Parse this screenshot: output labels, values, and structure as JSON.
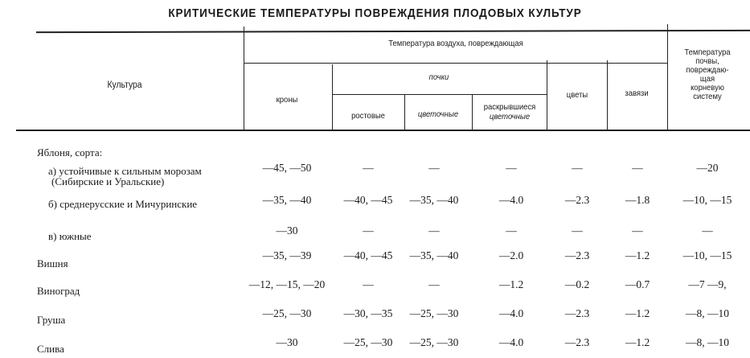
{
  "title": "КРИТИЧЕСКИЕ ТЕМПЕРАТУРЫ ПОВРЕЖДЕНИЯ ПЛОДОВЫХ КУЛЬТУР",
  "header": {
    "culture": "Культура",
    "air_group": "Температура воздуха, повреждающая",
    "crowns": "кроны",
    "buds_group": "почки",
    "growth_buds": "ростовые",
    "flower_buds": "цветочные",
    "opened_buds_1": "раскрывшиеся",
    "opened_buds_2": "цветочные",
    "flowers": "цветы",
    "ovaries": "завязи",
    "soil": [
      "Температура",
      "почвы,",
      "повреждаю-",
      "щая",
      "корневую",
      "систему"
    ]
  },
  "group_label": "Яблоня, сорта:",
  "rows": [
    {
      "label": [
        "а) устойчивые к сильным морозам",
        "(Сибирские и Уральские)"
      ],
      "values": [
        "—45, —50",
        "—",
        "—",
        "—",
        "—",
        "—",
        "—20"
      ]
    },
    {
      "label": [
        "б) среднерусские и Мичуринские"
      ],
      "values": [
        "—35, —40",
        "—40, —45",
        "—35, —40",
        "—4.0",
        "—2.3",
        "—1.8",
        "—10, —15"
      ]
    },
    {
      "label": [
        "в) южные"
      ],
      "values": [
        "—30",
        "—",
        "—",
        "—",
        "—",
        "—",
        "—"
      ]
    },
    {
      "label": [
        "Вишня"
      ],
      "values": [
        "—35, —39",
        "—40, —45",
        "—35, —40",
        "—2.0",
        "—2.3",
        "—1.2",
        "—10, —15"
      ]
    },
    {
      "label": [
        "Виноград"
      ],
      "values": [
        "—12, —15, —20",
        "—",
        "—",
        "—1.2",
        "—0.2",
        "—0.7",
        "—7 —9,"
      ]
    },
    {
      "label": [
        "Груша"
      ],
      "values": [
        "—25, —30",
        "—30, —35",
        "—25, —30",
        "—4.0",
        "—2.3",
        "—1.2",
        "—8, —10"
      ]
    },
    {
      "label": [
        "Слива"
      ],
      "values": [
        "—30",
        "—25, —30",
        "—25, —30",
        "—4.0",
        "—2.3",
        "—1.2",
        "—8, —10"
      ]
    }
  ]
}
